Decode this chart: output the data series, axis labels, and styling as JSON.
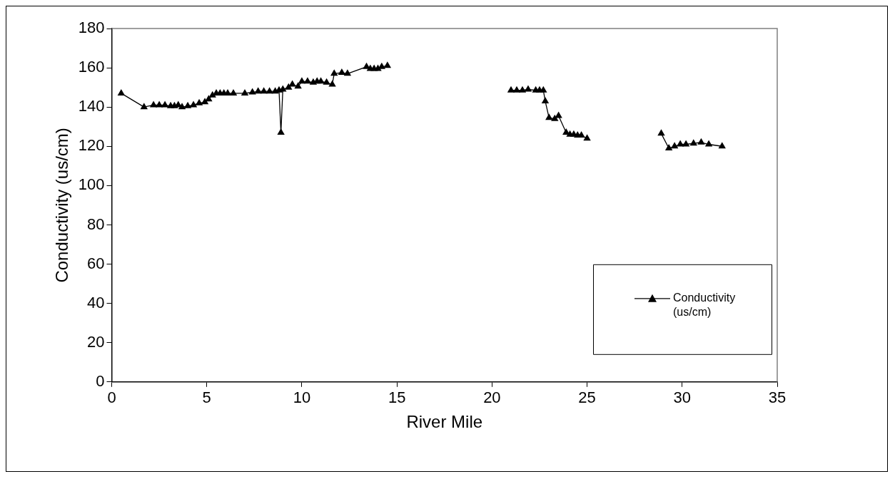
{
  "chart_data": {
    "type": "line",
    "xlabel": "River Mile",
    "ylabel": "Conductivity (us/cm)",
    "xlim": [
      0,
      35
    ],
    "xticks": [
      0,
      5,
      10,
      15,
      20,
      25,
      30,
      35
    ],
    "ylim": [
      0,
      180
    ],
    "yticks": [
      0,
      20,
      40,
      60,
      80,
      100,
      120,
      140,
      160,
      180
    ],
    "grid": false,
    "legend": "bottom right",
    "marker": "triangle",
    "line_style": "solid",
    "series": [
      {
        "name": "Conductivity (us/cm)",
        "color": "#000000",
        "x": [
          0.5,
          1.7,
          2.2,
          2.5,
          2.8,
          3.1,
          3.3,
          3.5,
          3.7,
          4.0,
          4.3,
          4.6,
          4.9,
          5.1,
          5.3,
          5.5,
          5.7,
          5.9,
          6.1,
          6.4,
          7.0,
          7.4,
          7.7,
          8.0,
          8.3,
          8.6,
          8.8,
          8.9,
          9.0,
          9.3,
          9.5,
          9.8,
          10.0,
          10.3,
          10.6,
          10.8,
          11.0,
          11.3,
          11.6,
          11.7,
          12.1,
          12.4,
          13.4,
          13.6,
          13.8,
          14.0,
          14.2,
          14.5,
          null,
          21.0,
          21.3,
          21.6,
          21.9,
          22.3,
          22.5,
          22.7,
          22.8,
          23.0,
          23.3,
          23.5,
          23.9,
          24.1,
          24.3,
          24.5,
          24.7,
          25.0,
          null,
          28.9,
          29.3,
          29.6,
          29.9,
          30.2,
          30.6,
          31.0,
          31.4,
          32.1
        ],
        "values": [
          147,
          140,
          141,
          141,
          141,
          140.5,
          140.5,
          141,
          140,
          140.5,
          141,
          142,
          142.5,
          144,
          146,
          147,
          147,
          147,
          147,
          147,
          147,
          147.5,
          148,
          148,
          148,
          148,
          148.5,
          127,
          149,
          150,
          151.5,
          150.5,
          153,
          153,
          152.5,
          153,
          153,
          152.5,
          151.5,
          157,
          157.5,
          157,
          160.5,
          159.5,
          159.5,
          159.5,
          160.5,
          161,
          null,
          148.5,
          148.5,
          148.5,
          149,
          148.5,
          148.5,
          148.5,
          143,
          134.5,
          134,
          135.5,
          127,
          126,
          126,
          125.5,
          125.5,
          124,
          null,
          126.5,
          119,
          120,
          121,
          121,
          121.5,
          122,
          121,
          120
        ]
      }
    ]
  }
}
